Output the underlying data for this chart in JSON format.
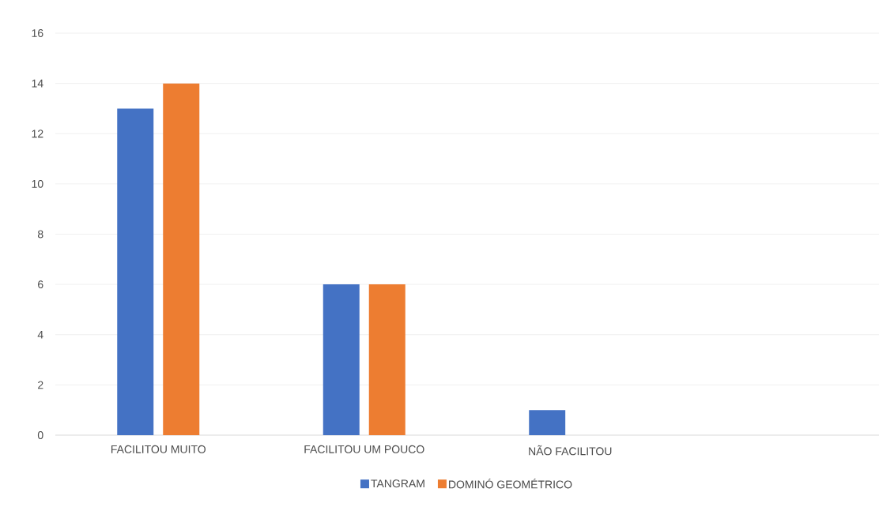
{
  "chart_data": {
    "type": "bar",
    "categories": [
      "FACILITOU MUITO",
      "FACILITOU UM POUCO",
      "NÃO FACILITOU",
      null
    ],
    "series": [
      {
        "name": "TANGRAM",
        "color": "#4472c4",
        "values": [
          13,
          6,
          1,
          null
        ]
      },
      {
        "name": "DOMINÓ GEOMÉTRICO",
        "color": "#ed7d31",
        "values": [
          14,
          6,
          0,
          null
        ]
      }
    ],
    "ylim": [
      0,
      16
    ],
    "yticks": [
      0,
      2,
      4,
      6,
      8,
      10,
      12,
      14,
      16
    ],
    "grid": "y",
    "legend": "bottom"
  }
}
